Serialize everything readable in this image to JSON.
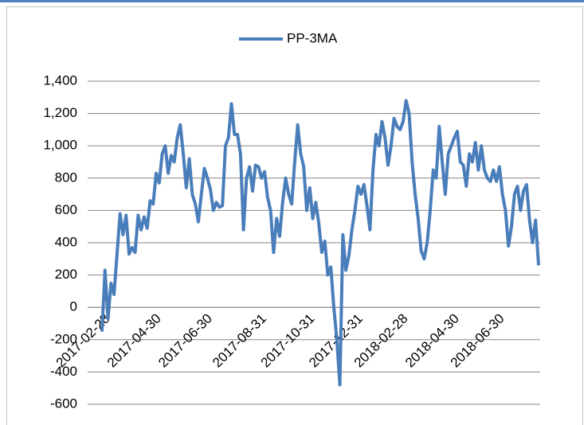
{
  "chart_data": {
    "type": "line",
    "categories": [
      null,
      null,
      "2017-02-28",
      null,
      null,
      null,
      null,
      null,
      null,
      null,
      null,
      null,
      null,
      null,
      null,
      null,
      null,
      null,
      null,
      "2017-04-30",
      null,
      null,
      null,
      null,
      null,
      null,
      null,
      null,
      null,
      null,
      null,
      null,
      null,
      null,
      null,
      null,
      "2017-06-30",
      null,
      null,
      null,
      null,
      null,
      null,
      null,
      null,
      null,
      null,
      null,
      null,
      null,
      null,
      null,
      null,
      null,
      "2017-08-31",
      null,
      null,
      null,
      null,
      null,
      null,
      null,
      null,
      null,
      null,
      null,
      null,
      null,
      null,
      null,
      "2017-10-31",
      null,
      null,
      null,
      null,
      null,
      null,
      null,
      null,
      null,
      null,
      null,
      null,
      null,
      null,
      null,
      "2017-12-31",
      null,
      null,
      null,
      null,
      null,
      null,
      null,
      null,
      null,
      null,
      null,
      null,
      null,
      null,
      "2018-02-28",
      null,
      null,
      null,
      null,
      null,
      null,
      null,
      null,
      null,
      null,
      null,
      null,
      null,
      null,
      null,
      null,
      "2018-04-30",
      null,
      null,
      null,
      null,
      null,
      null,
      null,
      null,
      null,
      null,
      null,
      null,
      null,
      null,
      "2018-06-30",
      null,
      null,
      null,
      null,
      null,
      null,
      null,
      null,
      null,
      null,
      null,
      null
    ],
    "series": [
      {
        "name": "PP-3MA",
        "color": "#4a7ebb",
        "values": [
          -150,
          230,
          -70,
          150,
          80,
          330,
          580,
          450,
          570,
          330,
          370,
          340,
          570,
          480,
          560,
          490,
          660,
          640,
          830,
          770,
          950,
          1000,
          830,
          940,
          900,
          1050,
          1130,
          950,
          740,
          920,
          700,
          640,
          530,
          700,
          860,
          800,
          730,
          600,
          650,
          620,
          630,
          1000,
          1050,
          1260,
          1070,
          1070,
          950,
          480,
          800,
          870,
          720,
          880,
          870,
          800,
          840,
          680,
          600,
          340,
          550,
          440,
          650,
          800,
          700,
          640,
          900,
          1130,
          950,
          870,
          600,
          740,
          550,
          650,
          520,
          340,
          410,
          200,
          250,
          0,
          -200,
          -480,
          450,
          230,
          320,
          480,
          600,
          750,
          700,
          760,
          630,
          480,
          850,
          1070,
          1000,
          1150,
          1050,
          880,
          1000,
          1170,
          1120,
          1100,
          1150,
          1280,
          1200,
          900,
          700,
          550,
          350,
          300,
          400,
          600,
          850,
          800,
          1120,
          900,
          700,
          950,
          1000,
          1050,
          1090,
          900,
          880,
          750,
          950,
          900,
          1020,
          850,
          1000,
          850,
          800,
          780,
          850,
          780,
          870,
          700,
          600,
          380,
          500,
          700,
          750,
          600,
          720,
          760,
          540,
          400,
          540,
          260
        ]
      }
    ],
    "ylim": [
      -600,
      1400
    ],
    "yticks": [
      -600,
      -400,
      -200,
      0,
      200,
      400,
      600,
      800,
      {
        "value": 1000,
        "label": "1,000"
      },
      {
        "value": 1200,
        "label": "1,200"
      },
      {
        "value": 1400,
        "label": "1,400"
      }
    ],
    "grid": true,
    "legend": "top"
  }
}
